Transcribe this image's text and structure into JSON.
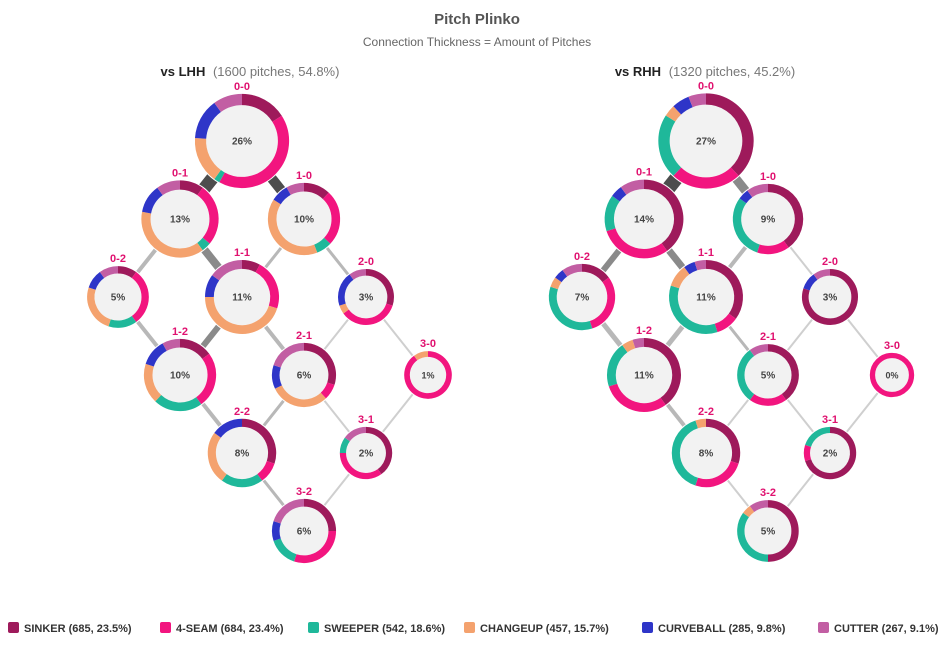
{
  "header": {
    "title": "Pitch Plinko",
    "subtitle": "Connection Thickness = Amount of Pitches"
  },
  "colors": {
    "sinker": "#9e1a5b",
    "four_seam": "#f2157f",
    "sweeper": "#1fb89a",
    "changeup": "#f4a26e",
    "curveball": "#2e35c8",
    "cutter": "#c25ea3",
    "connector": "#4d4d4d",
    "count_label": "#e0116f"
  },
  "chart_data": {
    "type": "pitch-plinko",
    "legend": [
      {
        "key": "sinker",
        "label": "SINKER (685, 23.5%)"
      },
      {
        "key": "four_seam",
        "label": "4-SEAM (684, 23.4%)"
      },
      {
        "key": "sweeper",
        "label": "SWEEPER (542, 18.6%)"
      },
      {
        "key": "changeup",
        "label": "CHANGEUP (457, 15.7%)"
      },
      {
        "key": "curveball",
        "label": "CURVEBALL (285, 9.8%)"
      },
      {
        "key": "cutter",
        "label": "CUTTER (267, 9.1%)"
      }
    ],
    "panels": [
      {
        "title_strong": "vs LHH",
        "title_light": "(1600 pitches, 54.8%)",
        "counts": [
          {
            "count": "0-0",
            "pct": "26%",
            "value": 26,
            "mix": {
              "four_seam": 0.42,
              "curveball": 0.14,
              "changeup": 0.16,
              "sinker": 0.16,
              "cutter": 0.1,
              "sweeper": 0.02
            }
          },
          {
            "count": "0-1",
            "pct": "13%",
            "value": 13,
            "mix": {
              "changeup": 0.38,
              "four_seam": 0.26,
              "cutter": 0.1,
              "curveball": 0.12,
              "sinker": 0.1,
              "sweeper": 0.04
            }
          },
          {
            "count": "1-0",
            "pct": "10%",
            "value": 10,
            "mix": {
              "changeup": 0.4,
              "four_seam": 0.25,
              "sinker": 0.12,
              "curveball": 0.08,
              "cutter": 0.08,
              "sweeper": 0.07
            }
          },
          {
            "count": "0-2",
            "pct": "5%",
            "value": 5,
            "mix": {
              "four_seam": 0.3,
              "changeup": 0.25,
              "curveball": 0.1,
              "sinker": 0.1,
              "sweeper": 0.15,
              "cutter": 0.1
            }
          },
          {
            "count": "1-1",
            "pct": "11%",
            "value": 11,
            "mix": {
              "changeup": 0.45,
              "four_seam": 0.22,
              "cutter": 0.15,
              "curveball": 0.1,
              "sinker": 0.08
            }
          },
          {
            "count": "2-0",
            "pct": "3%",
            "value": 3,
            "mix": {
              "four_seam": 0.35,
              "sinker": 0.3,
              "curveball": 0.2,
              "cutter": 0.1,
              "changeup": 0.05
            }
          },
          {
            "count": "1-2",
            "pct": "10%",
            "value": 10,
            "mix": {
              "four_seam": 0.25,
              "curveball": 0.12,
              "changeup": 0.18,
              "sweeper": 0.22,
              "sinker": 0.15,
              "cutter": 0.08
            }
          },
          {
            "count": "2-1",
            "pct": "6%",
            "value": 6,
            "mix": {
              "changeup": 0.3,
              "sinker": 0.3,
              "cutter": 0.2,
              "curveball": 0.12,
              "four_seam": 0.08
            }
          },
          {
            "count": "3-0",
            "pct": "1%",
            "value": 1,
            "mix": {
              "four_seam": 0.9,
              "changeup": 0.1
            }
          },
          {
            "count": "2-2",
            "pct": "8%",
            "value": 8,
            "mix": {
              "sinker": 0.3,
              "changeup": 0.25,
              "sweeper": 0.2,
              "curveball": 0.15,
              "four_seam": 0.1
            }
          },
          {
            "count": "3-1",
            "pct": "2%",
            "value": 2,
            "mix": {
              "sinker": 0.4,
              "four_seam": 0.35,
              "cutter": 0.15,
              "sweeper": 0.1
            }
          },
          {
            "count": "3-2",
            "pct": "6%",
            "value": 6,
            "mix": {
              "four_seam": 0.3,
              "sinker": 0.25,
              "cutter": 0.2,
              "sweeper": 0.15,
              "curveball": 0.1
            }
          }
        ],
        "links": [
          {
            "from": "0-0",
            "to": "0-1",
            "weight": 13
          },
          {
            "from": "0-0",
            "to": "1-0",
            "weight": 10
          },
          {
            "from": "0-1",
            "to": "0-2",
            "weight": 4
          },
          {
            "from": "0-1",
            "to": "1-1",
            "weight": 8
          },
          {
            "from": "1-0",
            "to": "1-1",
            "weight": 3
          },
          {
            "from": "1-0",
            "to": "2-0",
            "weight": 3
          },
          {
            "from": "0-2",
            "to": "1-2",
            "weight": 4
          },
          {
            "from": "1-1",
            "to": "1-2",
            "weight": 6
          },
          {
            "from": "1-1",
            "to": "2-1",
            "weight": 4
          },
          {
            "from": "2-0",
            "to": "2-1",
            "weight": 2
          },
          {
            "from": "2-0",
            "to": "3-0",
            "weight": 1.5
          },
          {
            "from": "1-2",
            "to": "2-2",
            "weight": 4
          },
          {
            "from": "2-1",
            "to": "2-2",
            "weight": 3
          },
          {
            "from": "2-1",
            "to": "3-1",
            "weight": 1.5
          },
          {
            "from": "3-0",
            "to": "3-1",
            "weight": 1
          },
          {
            "from": "2-2",
            "to": "3-2",
            "weight": 3
          },
          {
            "from": "3-1",
            "to": "3-2",
            "weight": 1.5
          }
        ]
      },
      {
        "title_strong": "vs RHH",
        "title_light": "(1320 pitches, 45.2%)",
        "counts": [
          {
            "count": "0-0",
            "pct": "27%",
            "value": 27,
            "mix": {
              "sinker": 0.38,
              "sweeper": 0.22,
              "four_seam": 0.24,
              "curveball": 0.06,
              "cutter": 0.06,
              "changeup": 0.04
            }
          },
          {
            "count": "0-1",
            "pct": "14%",
            "value": 14,
            "mix": {
              "sinker": 0.4,
              "four_seam": 0.3,
              "cutter": 0.1,
              "sweeper": 0.15,
              "curveball": 0.05
            }
          },
          {
            "count": "1-0",
            "pct": "9%",
            "value": 9,
            "mix": {
              "sinker": 0.4,
              "sweeper": 0.3,
              "four_seam": 0.15,
              "cutter": 0.1,
              "curveball": 0.05
            }
          },
          {
            "count": "0-2",
            "pct": "7%",
            "value": 7,
            "mix": {
              "sweeper": 0.35,
              "four_seam": 0.3,
              "sinker": 0.15,
              "cutter": 0.1,
              "curveball": 0.05,
              "changeup": 0.05
            }
          },
          {
            "count": "1-1",
            "pct": "11%",
            "value": 11,
            "mix": {
              "sinker": 0.35,
              "sweeper": 0.35,
              "changeup": 0.1,
              "four_seam": 0.1,
              "curveball": 0.05,
              "cutter": 0.05
            }
          },
          {
            "count": "2-0",
            "pct": "3%",
            "value": 3,
            "mix": {
              "sinker": 0.8,
              "cutter": 0.1,
              "curveball": 0.1
            }
          },
          {
            "count": "1-2",
            "pct": "11%",
            "value": 11,
            "mix": {
              "sinker": 0.4,
              "four_seam": 0.3,
              "sweeper": 0.2,
              "cutter": 0.05,
              "changeup": 0.05
            }
          },
          {
            "count": "2-1",
            "pct": "5%",
            "value": 5,
            "mix": {
              "sinker": 0.4,
              "sweeper": 0.3,
              "four_seam": 0.2,
              "cutter": 0.1
            }
          },
          {
            "count": "3-0",
            "pct": "0%",
            "value": 0.5,
            "mix": {
              "four_seam": 1.0
            }
          },
          {
            "count": "2-2",
            "pct": "8%",
            "value": 8,
            "mix": {
              "sweeper": 0.4,
              "sinker": 0.3,
              "four_seam": 0.25,
              "changeup": 0.05
            }
          },
          {
            "count": "3-1",
            "pct": "2%",
            "value": 2,
            "mix": {
              "sinker": 0.7,
              "sweeper": 0.2,
              "four_seam": 0.1
            }
          },
          {
            "count": "3-2",
            "pct": "5%",
            "value": 5,
            "mix": {
              "sinker": 0.5,
              "sweeper": 0.35,
              "cutter": 0.1,
              "changeup": 0.05
            }
          }
        ],
        "links": [
          {
            "from": "0-0",
            "to": "0-1",
            "weight": 14
          },
          {
            "from": "0-0",
            "to": "1-0",
            "weight": 9
          },
          {
            "from": "0-1",
            "to": "0-2",
            "weight": 6
          },
          {
            "from": "0-1",
            "to": "1-1",
            "weight": 7
          },
          {
            "from": "1-0",
            "to": "1-1",
            "weight": 4
          },
          {
            "from": "1-0",
            "to": "2-0",
            "weight": 2
          },
          {
            "from": "0-2",
            "to": "1-2",
            "weight": 5
          },
          {
            "from": "1-1",
            "to": "1-2",
            "weight": 5
          },
          {
            "from": "1-1",
            "to": "2-1",
            "weight": 3
          },
          {
            "from": "2-0",
            "to": "2-1",
            "weight": 1.5
          },
          {
            "from": "2-0",
            "to": "3-0",
            "weight": 1
          },
          {
            "from": "1-2",
            "to": "2-2",
            "weight": 4
          },
          {
            "from": "2-1",
            "to": "2-2",
            "weight": 2
          },
          {
            "from": "2-1",
            "to": "3-1",
            "weight": 1.5
          },
          {
            "from": "3-0",
            "to": "3-1",
            "weight": 1
          },
          {
            "from": "2-2",
            "to": "3-2",
            "weight": 2
          },
          {
            "from": "3-1",
            "to": "3-2",
            "weight": 1.5
          }
        ]
      }
    ]
  }
}
